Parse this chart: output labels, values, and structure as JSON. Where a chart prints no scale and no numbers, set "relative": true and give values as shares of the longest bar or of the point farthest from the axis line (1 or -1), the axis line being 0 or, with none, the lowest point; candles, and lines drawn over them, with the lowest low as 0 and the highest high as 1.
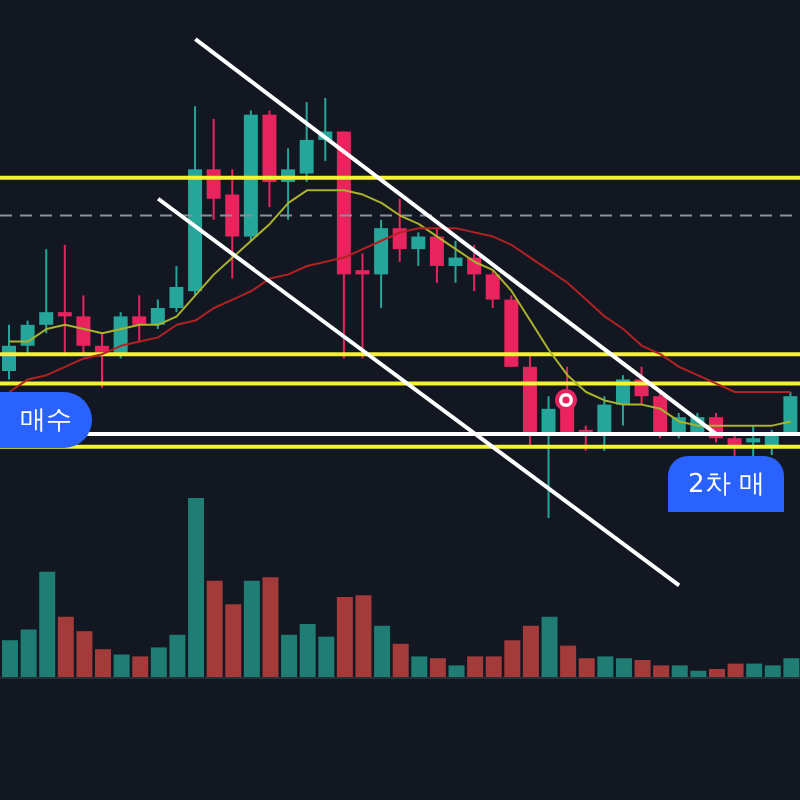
{
  "chart_data": [
    {
      "type": "candlestick",
      "relative": true,
      "tick_labels": false,
      "grid": false,
      "legend": false,
      "categories": [
        null,
        null,
        null,
        null,
        null,
        null,
        null,
        null,
        null,
        null,
        null,
        null,
        null,
        null,
        null,
        null,
        null,
        null,
        null,
        null,
        null,
        null,
        null,
        null,
        null,
        null,
        null,
        null,
        null,
        null,
        null,
        null,
        null,
        null,
        null,
        null,
        null,
        null,
        null,
        null,
        null,
        null,
        null
      ],
      "ohlc": [
        [
          0.35,
          0.46,
          0.33,
          0.41
        ],
        [
          0.41,
          0.47,
          0.39,
          0.46
        ],
        [
          0.46,
          0.64,
          0.44,
          0.49
        ],
        [
          0.49,
          0.65,
          0.39,
          0.48
        ],
        [
          0.48,
          0.53,
          0.39,
          0.41
        ],
        [
          0.41,
          0.44,
          0.31,
          0.39
        ],
        [
          0.39,
          0.49,
          0.38,
          0.48
        ],
        [
          0.48,
          0.53,
          0.42,
          0.46
        ],
        [
          0.46,
          0.52,
          0.45,
          0.5
        ],
        [
          0.5,
          0.6,
          0.49,
          0.55
        ],
        [
          0.54,
          0.98,
          0.53,
          0.83
        ],
        [
          0.83,
          0.95,
          0.71,
          0.76
        ],
        [
          0.77,
          0.83,
          0.57,
          0.67
        ],
        [
          0.67,
          0.97,
          0.66,
          0.96
        ],
        [
          0.96,
          0.97,
          0.74,
          0.8
        ],
        [
          0.8,
          0.88,
          0.71,
          0.83
        ],
        [
          0.82,
          0.99,
          0.8,
          0.9
        ],
        [
          0.9,
          1,
          0.85,
          0.92
        ],
        [
          0.92,
          0.92,
          0.38,
          0.58
        ],
        [
          0.59,
          0.63,
          0.38,
          0.58
        ],
        [
          0.58,
          0.71,
          0.5,
          0.69
        ],
        [
          0.69,
          0.76,
          0.61,
          0.64
        ],
        [
          0.64,
          0.68,
          0.6,
          0.67
        ],
        [
          0.67,
          0.69,
          0.56,
          0.6
        ],
        [
          0.6,
          0.66,
          0.56,
          0.62
        ],
        [
          0.62,
          0.65,
          0.54,
          0.58
        ],
        [
          0.58,
          0.59,
          0.5,
          0.52
        ],
        [
          0.52,
          0.53,
          0.36,
          0.36
        ],
        [
          0.36,
          0.39,
          0.17,
          0.2
        ],
        [
          0.2,
          0.29,
          0,
          0.26
        ],
        [
          0.3,
          0.36,
          0.2,
          0.2
        ],
        [
          0.21,
          0.22,
          0.16,
          0.2
        ],
        [
          0.2,
          0.29,
          0.16,
          0.27
        ],
        [
          0.27,
          0.34,
          0.22,
          0.33
        ],
        [
          0.33,
          0.36,
          0.27,
          0.29
        ],
        [
          0.29,
          0.3,
          0.19,
          0.2
        ],
        [
          0.2,
          0.25,
          0.19,
          0.24
        ],
        [
          0.2,
          0.25,
          0.2,
          0.24
        ],
        [
          0.24,
          0.25,
          0.18,
          0.19
        ],
        [
          0.19,
          0.2,
          0.14,
          0.17
        ],
        [
          0.18,
          0.22,
          0.14,
          0.19
        ],
        [
          0.17,
          0.21,
          0.15,
          0.2
        ],
        [
          0.2,
          0.3,
          0.2,
          0.29
        ]
      ],
      "colors": [
        "#26a69a",
        "#26a69a",
        "#26a69a",
        "#e8245f",
        "#e8245f",
        "#e8245f",
        "#26a69a",
        "#e8245f",
        "#26a69a",
        "#26a69a",
        "#26a69a",
        "#e8245f",
        "#e8245f",
        "#26a69a",
        "#e8245f",
        "#26a69a",
        "#26a69a",
        "#26a69a",
        "#e8245f",
        "#e8245f",
        "#26a69a",
        "#e8245f",
        "#26a69a",
        "#e8245f",
        "#26a69a",
        "#e8245f",
        "#e8245f",
        "#e8245f",
        "#e8245f",
        "#26a69a",
        "#e8245f",
        "#e8245f",
        "#26a69a",
        "#26a69a",
        "#e8245f",
        "#e8245f",
        "#26a69a",
        "#26a69a",
        "#e8245f",
        "#e8245f",
        "#26a69a",
        "#26a69a",
        "#26a69a"
      ],
      "series": [
        {
          "type": "line",
          "color": "#a9b32c",
          "line_style": "solid",
          "values": [
            0.42,
            0.42,
            0.45,
            0.46,
            0.45,
            0.44,
            0.45,
            0.46,
            0.46,
            0.48,
            0.53,
            0.58,
            0.62,
            0.66,
            0.7,
            0.75,
            0.78,
            0.78,
            0.78,
            0.77,
            0.75,
            0.72,
            0.7,
            0.67,
            0.64,
            0.61,
            0.59,
            0.54,
            0.47,
            0.4,
            0.34,
            0.3,
            0.28,
            0.27,
            0.27,
            0.26,
            0.23,
            0.22,
            0.22,
            0.22,
            0.22,
            0.22,
            0.23
          ]
        },
        {
          "type": "line",
          "color": "#b22222",
          "line_style": "solid",
          "values": [
            0.3,
            0.33,
            0.34,
            0.36,
            0.38,
            0.39,
            0.41,
            0.42,
            0.43,
            0.46,
            0.47,
            0.5,
            0.52,
            0.54,
            0.57,
            0.58,
            0.6,
            0.61,
            0.62,
            0.64,
            0.66,
            0.68,
            0.69,
            0.69,
            0.69,
            0.68,
            0.67,
            0.65,
            0.62,
            0.59,
            0.56,
            0.52,
            0.48,
            0.45,
            0.41,
            0.39,
            0.36,
            0.34,
            0.32,
            0.3,
            0.3,
            0.3,
            0.3
          ]
        },
        {
          "type": "line",
          "color": "#ffffff",
          "line_style": "solid",
          "values": [
            null,
            null,
            null,
            null,
            null,
            null,
            null,
            null,
            null,
            null,
            1.14,
            null,
            null,
            null,
            null,
            null,
            null,
            null,
            null,
            null,
            null,
            null,
            null,
            null,
            null,
            null,
            null,
            null,
            null,
            null,
            null,
            null,
            null,
            null,
            null,
            null,
            null,
            null,
            0.2,
            null,
            null,
            null,
            null
          ]
        },
        {
          "type": "line",
          "color": "#ffffff",
          "line_style": "solid",
          "values": [
            null,
            null,
            null,
            null,
            null,
            null,
            null,
            null,
            0.76,
            null,
            null,
            null,
            null,
            null,
            null,
            null,
            null,
            null,
            null,
            null,
            null,
            null,
            null,
            null,
            null,
            null,
            null,
            null,
            null,
            null,
            null,
            null,
            null,
            null,
            null,
            null,
            -0.16,
            null,
            null,
            null,
            null,
            null,
            null
          ]
        }
      ],
      "ref_lines": [
        {
          "axis": "y",
          "value": 0.81,
          "color": "#f5f03a",
          "line_style": "solid"
        },
        {
          "axis": "y",
          "value": 0.72,
          "color": "#8a8f9c",
          "line_style": "dashed"
        },
        {
          "axis": "y",
          "value": 0.39,
          "color": "#f5f03a",
          "line_style": "solid"
        },
        {
          "axis": "y",
          "value": 0.32,
          "color": "#f5f03a",
          "line_style": "solid"
        },
        {
          "axis": "y",
          "value": 0.2,
          "color": "#ffffff",
          "line_style": "solid"
        },
        {
          "axis": "y",
          "value": 0.17,
          "color": "#f5f03a",
          "line_style": "solid"
        }
      ],
      "annotations": [
        "매수",
        "2차 매"
      ]
    },
    {
      "type": "bar",
      "relative": true,
      "tick_labels": false,
      "grid": false,
      "legend": false,
      "categories": [
        null,
        null,
        null,
        null,
        null,
        null,
        null,
        null,
        null,
        null,
        null,
        null,
        null,
        null,
        null,
        null,
        null,
        null,
        null,
        null,
        null,
        null,
        null,
        null,
        null,
        null,
        null,
        null,
        null,
        null,
        null,
        null,
        null,
        null,
        null,
        null,
        null,
        null,
        null,
        null,
        null,
        null,
        null
      ],
      "values": [
        0.21,
        0.27,
        0.59,
        0.34,
        0.26,
        0.16,
        0.13,
        0.12,
        0.17,
        0.24,
        1,
        0.54,
        0.41,
        0.54,
        0.56,
        0.24,
        0.3,
        0.23,
        0.45,
        0.46,
        0.29,
        0.19,
        0.12,
        0.11,
        0.07,
        0.12,
        0.12,
        0.21,
        0.29,
        0.34,
        0.18,
        0.11,
        0.12,
        0.11,
        0.1,
        0.07,
        0.07,
        0.04,
        0.05,
        0.08,
        0.08,
        0.07,
        0.11
      ],
      "colors": [
        "#1f7d73",
        "#1f7d73",
        "#1f7d73",
        "#a33b3b",
        "#a33b3b",
        "#a33b3b",
        "#1f7d73",
        "#a33b3b",
        "#1f7d73",
        "#1f7d73",
        "#1f7d73",
        "#a33b3b",
        "#a33b3b",
        "#1f7d73",
        "#a33b3b",
        "#1f7d73",
        "#1f7d73",
        "#1f7d73",
        "#a33b3b",
        "#a33b3b",
        "#1f7d73",
        "#a33b3b",
        "#1f7d73",
        "#a33b3b",
        "#1f7d73",
        "#a33b3b",
        "#a33b3b",
        "#a33b3b",
        "#a33b3b",
        "#1f7d73",
        "#a33b3b",
        "#a33b3b",
        "#1f7d73",
        "#1f7d73",
        "#a33b3b",
        "#a33b3b",
        "#1f7d73",
        "#1f7d73",
        "#a33b3b",
        "#a33b3b",
        "#1f7d73",
        "#1f7d73",
        "#1f7d73"
      ]
    }
  ]
}
